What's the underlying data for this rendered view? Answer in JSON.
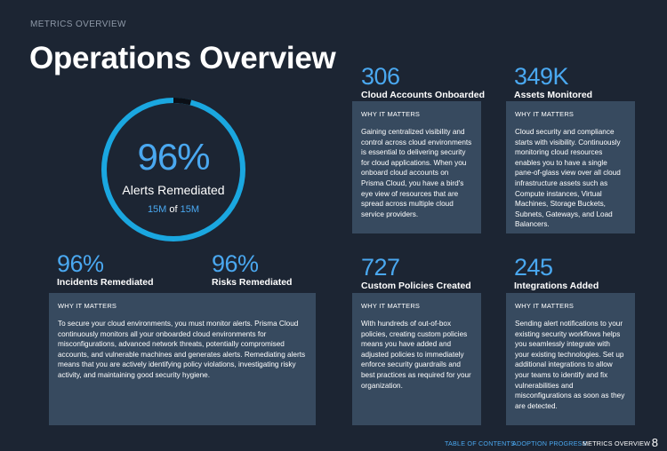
{
  "section_label": "METRICS OVERVIEW",
  "title": "Operations Overview",
  "gauge": {
    "percent_text": "96%",
    "fraction": 0.96,
    "label": "Alerts Remediated",
    "part": "15M",
    "of": "of",
    "total": "15M",
    "colors": {
      "ring": "#1aa7e0",
      "gap": "#0b0f16"
    }
  },
  "stats": {
    "cloud_accounts": {
      "value": "306",
      "label": "Cloud Accounts Onboarded"
    },
    "assets": {
      "value": "349K",
      "label": "Assets Monitored"
    },
    "incidents": {
      "value": "96%",
      "label": "Incidents Remediated"
    },
    "risks": {
      "value": "96%",
      "label": "Risks Remediated"
    },
    "policies": {
      "value": "727",
      "label": "Custom Policies Created"
    },
    "integrations": {
      "value": "245",
      "label": "Integrations Added"
    }
  },
  "cards": {
    "cloud_accounts": {
      "heading": "WHY IT MATTERS",
      "body": "Gaining centralized visibility and control across cloud environments is essential to delivering security for cloud applications. When you onboard cloud accounts on Prisma Cloud, you have a bird's eye view of resources that are spread across multiple cloud service providers."
    },
    "assets": {
      "heading": "WHY IT MATTERS",
      "body": "Cloud security and compliance starts with visibility. Continuously monitoring cloud resources enables you to have a single pane-of-glass view over all cloud infrastructure assets such as Compute instances, Virtual Machines, Storage Buckets, Subnets, Gateways, and Load Balancers."
    },
    "alerts": {
      "heading": "WHY IT MATTERS",
      "body": "To secure your cloud environments, you must monitor alerts. Prisma Cloud continuously monitors all your onboarded cloud environments for misconfigurations, advanced network threats, potentially compromised accounts, and vulnerable machines and generates alerts. Remediating alerts means that you are actively identifying policy violations, investigating risky activity, and maintaining good security hygiene."
    },
    "policies": {
      "heading": "WHY IT MATTERS",
      "body": "With hundreds of out-of-box policies, creating custom policies means you have added and adjusted policies to immediately enforce security guardrails and best practices as required for your organization."
    },
    "integrations": {
      "heading": "WHY IT MATTERS",
      "body": "Sending alert notifications to your existing security workflows helps you seamlessly integrate with your existing technologies. Set up additional integrations to allow your teams to identify and fix vulnerabilities and misconfigurations as soon as they are detected."
    }
  },
  "footer": {
    "toc": "TABLE OF CONTENTS",
    "adoption": "ADOPTION PROGRESS",
    "metrics": "METRICS OVERVIEW",
    "page": "8"
  }
}
